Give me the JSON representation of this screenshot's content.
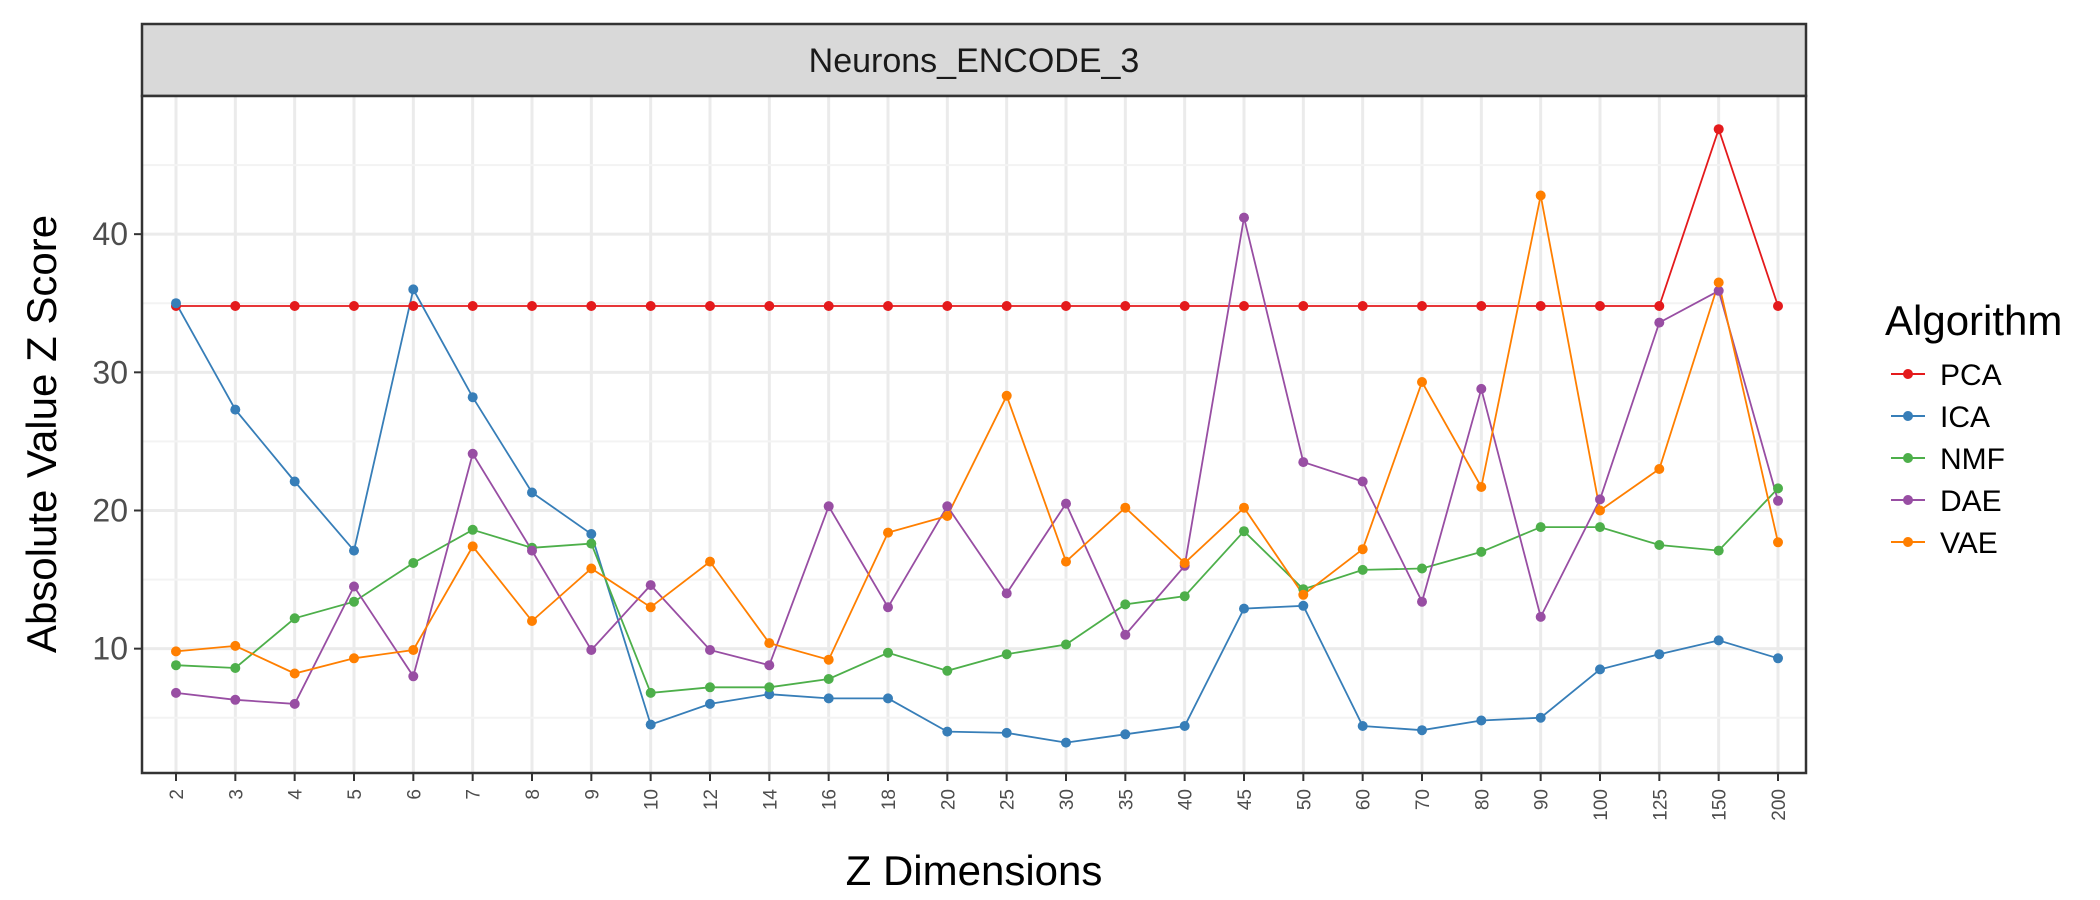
{
  "chart_data": {
    "type": "line",
    "facet_title": "Neurons_ENCODE_3",
    "xlabel": "Z Dimensions",
    "ylabel": "Absolute Value Z Score",
    "legend_title": "Algorithm",
    "legend_position": "right",
    "grid": true,
    "ylim": [
      1,
      50
    ],
    "yticks": [
      10,
      20,
      30,
      40
    ],
    "categories": [
      "2",
      "3",
      "4",
      "5",
      "6",
      "7",
      "8",
      "9",
      "10",
      "12",
      "14",
      "16",
      "18",
      "20",
      "25",
      "30",
      "35",
      "40",
      "45",
      "50",
      "60",
      "70",
      "80",
      "90",
      "100",
      "125",
      "150",
      "200"
    ],
    "series": [
      {
        "name": "PCA",
        "color": "#e41a1c",
        "values": [
          34.8,
          34.8,
          34.8,
          34.8,
          34.8,
          34.8,
          34.8,
          34.8,
          34.8,
          34.8,
          34.8,
          34.8,
          34.8,
          34.8,
          34.8,
          34.8,
          34.8,
          34.8,
          34.8,
          34.8,
          34.8,
          34.8,
          34.8,
          34.8,
          34.8,
          34.8,
          47.6,
          34.8
        ]
      },
      {
        "name": "ICA",
        "color": "#377eb8",
        "values": [
          35.0,
          27.3,
          22.1,
          17.1,
          36.0,
          28.2,
          21.3,
          18.3,
          4.5,
          6.0,
          6.7,
          6.4,
          6.4,
          4.0,
          3.9,
          3.2,
          3.8,
          4.4,
          12.9,
          13.1,
          4.4,
          4.1,
          4.8,
          5.0,
          8.5,
          9.6,
          10.6,
          9.3
        ]
      },
      {
        "name": "NMF",
        "color": "#4daf4a",
        "values": [
          8.8,
          8.6,
          12.2,
          13.4,
          16.2,
          18.6,
          17.3,
          17.6,
          6.8,
          7.2,
          7.2,
          7.8,
          9.7,
          8.4,
          9.6,
          10.3,
          13.2,
          13.8,
          18.5,
          14.3,
          15.7,
          15.8,
          17.0,
          18.8,
          18.8,
          17.5,
          17.1,
          21.6
        ]
      },
      {
        "name": "DAE",
        "color": "#984ea3",
        "values": [
          6.8,
          6.3,
          6.0,
          14.5,
          8.0,
          24.1,
          17.1,
          9.9,
          14.6,
          9.9,
          8.8,
          20.3,
          13.0,
          20.3,
          14.0,
          20.5,
          11.0,
          16.0,
          41.2,
          23.5,
          22.1,
          13.4,
          28.8,
          12.3,
          20.8,
          33.6,
          35.9,
          20.7
        ]
      },
      {
        "name": "VAE",
        "color": "#ff7f00",
        "values": [
          9.8,
          10.2,
          8.2,
          9.3,
          9.9,
          17.4,
          12.0,
          15.8,
          13.0,
          16.3,
          10.4,
          9.2,
          18.4,
          19.6,
          28.3,
          16.3,
          20.2,
          16.2,
          20.2,
          13.9,
          17.2,
          29.3,
          21.7,
          42.8,
          20.0,
          23.0,
          36.5,
          17.7
        ]
      }
    ]
  }
}
